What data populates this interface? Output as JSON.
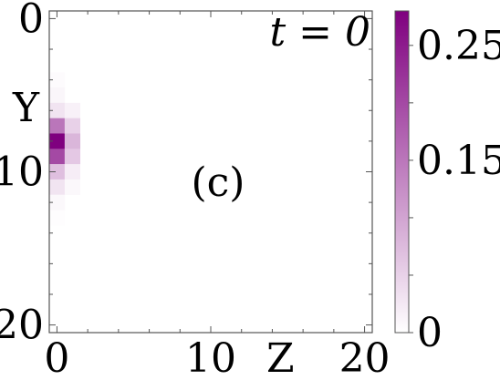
{
  "chart_data": {
    "type": "heatmap",
    "panel_label": "(c)",
    "annotation": "t = 0",
    "xlabel": "Z",
    "ylabel": "Y",
    "x_range": [
      -0.5,
      20.5
    ],
    "y_range": [
      -0.5,
      20.5
    ],
    "y_inverted": true,
    "x_ticks": [
      {
        "value": 0,
        "label": "0"
      },
      {
        "value": 10,
        "label": "10"
      },
      {
        "value": 20,
        "label": "20"
      }
    ],
    "y_ticks": [
      {
        "value": 0,
        "label": "0"
      },
      {
        "value": 10,
        "label": "10"
      },
      {
        "value": 20,
        "label": "20"
      }
    ],
    "colormap": {
      "low": "#ffffff",
      "high": "#7f007f"
    },
    "colorbar": {
      "vmin": 0,
      "vmax": 0.28,
      "ticks": [
        {
          "value": 0,
          "label": "0"
        },
        {
          "value": 0.15,
          "label": "0.15"
        },
        {
          "value": 0.25,
          "label": "0.25"
        }
      ]
    },
    "cells": [
      {
        "z": 0,
        "y": 4,
        "v": 0.004
      },
      {
        "z": 0,
        "y": 5,
        "v": 0.01
      },
      {
        "z": 0,
        "y": 6,
        "v": 0.03
      },
      {
        "z": 0,
        "y": 7,
        "v": 0.15
      },
      {
        "z": 0,
        "y": 8,
        "v": 0.28
      },
      {
        "z": 0,
        "y": 9,
        "v": 0.2
      },
      {
        "z": 0,
        "y": 10,
        "v": 0.07
      },
      {
        "z": 0,
        "y": 11,
        "v": 0.03
      },
      {
        "z": 0,
        "y": 12,
        "v": 0.008
      },
      {
        "z": 0,
        "y": 13,
        "v": 0.002
      },
      {
        "z": 1,
        "y": 6,
        "v": 0.015
      },
      {
        "z": 1,
        "y": 7,
        "v": 0.05
      },
      {
        "z": 1,
        "y": 8,
        "v": 0.08
      },
      {
        "z": 1,
        "y": 9,
        "v": 0.06
      },
      {
        "z": 1,
        "y": 10,
        "v": 0.02
      },
      {
        "z": 1,
        "y": 11,
        "v": 0.008
      }
    ]
  }
}
